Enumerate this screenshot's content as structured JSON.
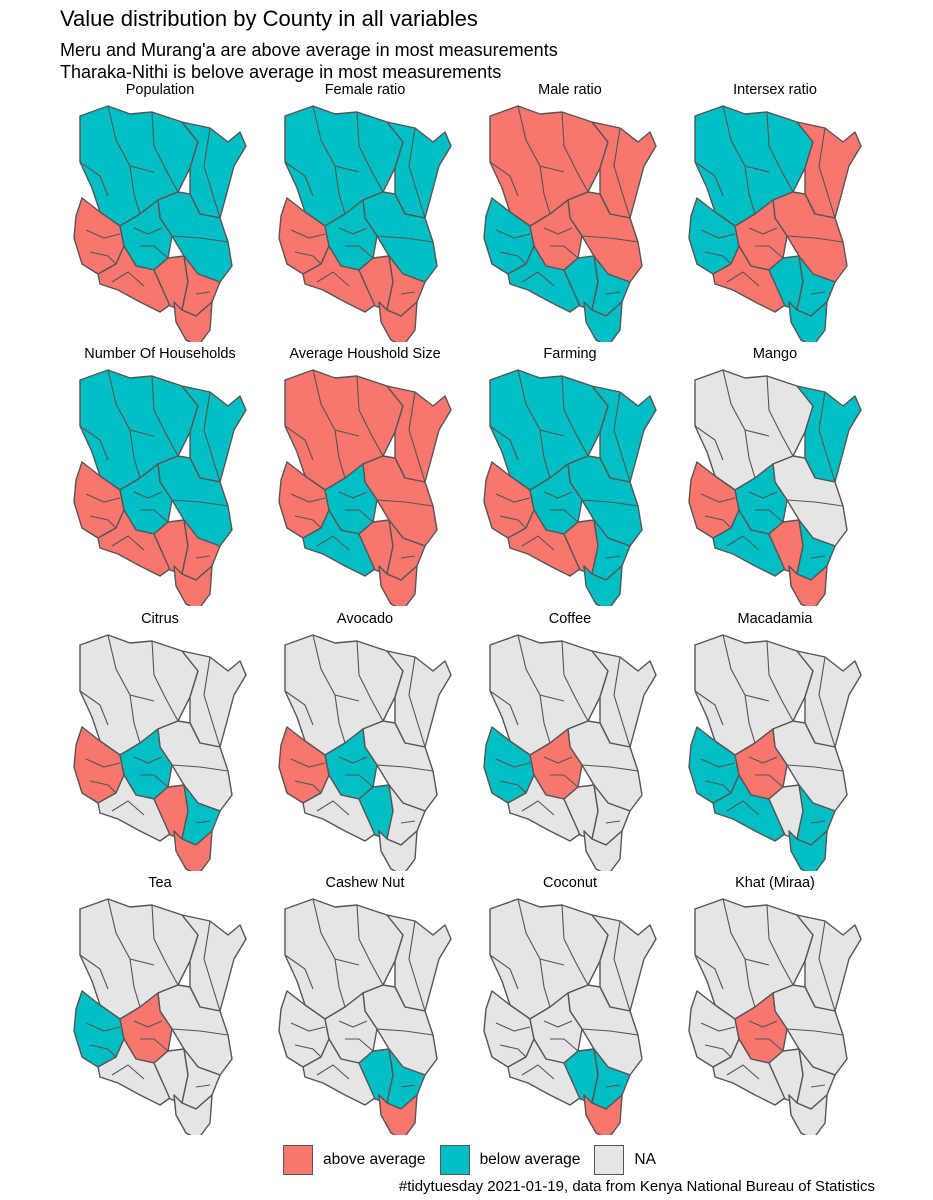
{
  "title": "Value distribution by County in all variables",
  "subtitle_lines": [
    "Meru and Murang'a are above average in most measurements",
    "Tharaka-Nithi is belove average in most measurements"
  ],
  "caption": "#tidytuesday 2021-01-19, data from Kenya National Bureau of Statistics",
  "colors": {
    "above": "#F8766D",
    "below": "#00BFC4",
    "na": "#E5E5E5",
    "border": "#555555"
  },
  "legend": [
    {
      "key": "above",
      "label": "above average"
    },
    {
      "key": "below",
      "label": "below average"
    },
    {
      "key": "na",
      "label": "NA"
    }
  ],
  "panels": [
    {
      "label": "Population",
      "regions": {
        "north": "below",
        "northeast": "below",
        "east": "below",
        "west": "above",
        "central": "below",
        "southcoast": "above",
        "southwest": "above",
        "coastmid": "above",
        "coastsouth": "above"
      }
    },
    {
      "label": "Female ratio",
      "regions": {
        "north": "below",
        "northeast": "below",
        "east": "below",
        "west": "above",
        "central": "below",
        "southcoast": "above",
        "southwest": "above",
        "coastmid": "above",
        "coastsouth": "above"
      }
    },
    {
      "label": "Male ratio",
      "regions": {
        "north": "above",
        "northeast": "above",
        "east": "above",
        "west": "below",
        "central": "above",
        "southcoast": "below",
        "southwest": "below",
        "coastmid": "below",
        "coastsouth": "below"
      }
    },
    {
      "label": "Intersex ratio",
      "regions": {
        "north": "below",
        "northeast": "above",
        "east": "above",
        "west": "below",
        "central": "above",
        "southcoast": "below",
        "southwest": "above",
        "coastmid": "below",
        "coastsouth": "below"
      }
    },
    {
      "label": "Number Of Households",
      "regions": {
        "north": "below",
        "northeast": "below",
        "east": "below",
        "west": "above",
        "central": "below",
        "southcoast": "above",
        "southwest": "above",
        "coastmid": "above",
        "coastsouth": "above"
      }
    },
    {
      "label": "Average Houshold Size",
      "regions": {
        "north": "above",
        "northeast": "above",
        "east": "above",
        "west": "above",
        "central": "below",
        "southcoast": "above",
        "southwest": "below",
        "coastmid": "above",
        "coastsouth": "above"
      }
    },
    {
      "label": "Farming",
      "regions": {
        "north": "below",
        "northeast": "below",
        "east": "below",
        "west": "above",
        "central": "below",
        "southcoast": "above",
        "southwest": "above",
        "coastmid": "below",
        "coastsouth": "below"
      }
    },
    {
      "label": "Mango",
      "regions": {
        "north": "na",
        "northeast": "below",
        "east": "na",
        "west": "above",
        "central": "below",
        "southcoast": "above",
        "southwest": "below",
        "coastmid": "below",
        "coastsouth": "above"
      }
    },
    {
      "label": "Citrus",
      "regions": {
        "north": "na",
        "northeast": "na",
        "east": "na",
        "west": "above",
        "central": "below",
        "southcoast": "above",
        "southwest": "na",
        "coastmid": "below",
        "coastsouth": "above"
      }
    },
    {
      "label": "Avocado",
      "regions": {
        "north": "na",
        "northeast": "na",
        "east": "na",
        "west": "above",
        "central": "below",
        "southcoast": "below",
        "southwest": "na",
        "coastmid": "na",
        "coastsouth": "na"
      }
    },
    {
      "label": "Coffee",
      "regions": {
        "north": "na",
        "northeast": "na",
        "east": "na",
        "west": "below",
        "central": "above",
        "southcoast": "na",
        "southwest": "na",
        "coastmid": "na",
        "coastsouth": "na"
      }
    },
    {
      "label": "Macadamia",
      "regions": {
        "north": "na",
        "northeast": "na",
        "east": "na",
        "west": "below",
        "central": "above",
        "southcoast": "na",
        "southwest": "below",
        "coastmid": "below",
        "coastsouth": "below"
      }
    },
    {
      "label": "Tea",
      "regions": {
        "north": "na",
        "northeast": "na",
        "east": "na",
        "west": "below",
        "central": "above",
        "southcoast": "na",
        "southwest": "na",
        "coastmid": "na",
        "coastsouth": "na"
      }
    },
    {
      "label": "Cashew Nut",
      "regions": {
        "north": "na",
        "northeast": "na",
        "east": "na",
        "west": "na",
        "central": "na",
        "southcoast": "below",
        "southwest": "na",
        "coastmid": "below",
        "coastsouth": "above"
      }
    },
    {
      "label": "Coconut",
      "regions": {
        "north": "na",
        "northeast": "na",
        "east": "na",
        "west": "na",
        "central": "na",
        "southcoast": "below",
        "southwest": "na",
        "coastmid": "below",
        "coastsouth": "above"
      }
    },
    {
      "label": "Khat (Miraa)",
      "regions": {
        "north": "na",
        "northeast": "na",
        "east": "na",
        "west": "na",
        "central": "above",
        "southcoast": "na",
        "southwest": "na",
        "coastmid": "na",
        "coastsouth": "na"
      }
    }
  ]
}
